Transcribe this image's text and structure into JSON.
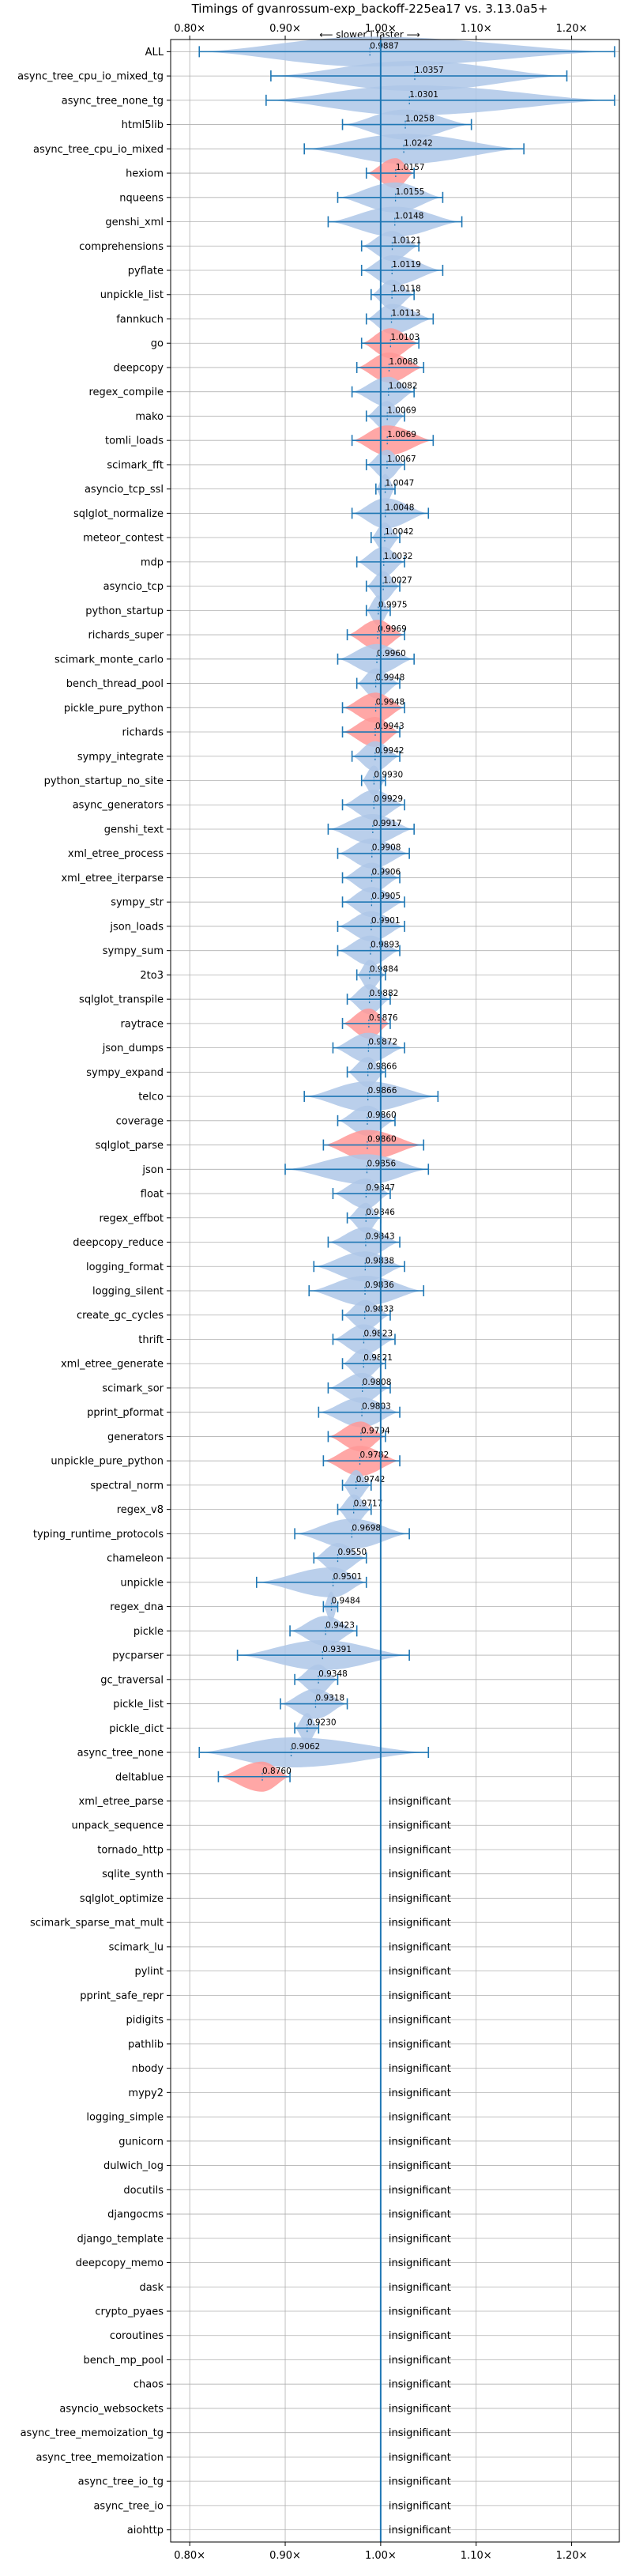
{
  "chart_data": {
    "type": "violin",
    "title": "Timings of gvanrossum-exp_backoff-225ea17 vs. 3.13.0a5+",
    "subtitle": "⟵ slower | faster ⟶",
    "x_ticks": [
      "0.80×",
      "0.90×",
      "1.00×",
      "1.10×",
      "1.20×"
    ],
    "x_tick_values": [
      0.8,
      0.9,
      1.0,
      1.1,
      1.2
    ],
    "xlim": [
      0.78,
      1.25
    ],
    "reference_line": 1.0,
    "grid": true,
    "colors": {
      "faster": "#aec7e8",
      "slower": "#ff9896",
      "line": "#1f77b4"
    },
    "insignificant_label": "insignificant",
    "benchmarks": [
      {
        "name": "ALL",
        "label": "0.9887",
        "value": 0.9887,
        "lo": 0.81,
        "hi": 1.245,
        "color": "faster"
      },
      {
        "name": "async_tree_cpu_io_mixed_tg",
        "label": "1.0357",
        "value": 1.0357,
        "lo": 0.885,
        "hi": 1.195,
        "color": "faster"
      },
      {
        "name": "async_tree_none_tg",
        "label": "1.0301",
        "value": 1.0301,
        "lo": 0.88,
        "hi": 1.245,
        "color": "faster"
      },
      {
        "name": "html5lib",
        "label": "1.0258",
        "value": 1.0258,
        "lo": 0.96,
        "hi": 1.095,
        "color": "faster"
      },
      {
        "name": "async_tree_cpu_io_mixed",
        "label": "1.0242",
        "value": 1.0242,
        "lo": 0.92,
        "hi": 1.15,
        "color": "faster"
      },
      {
        "name": "hexiom",
        "label": "1.0157",
        "value": 1.0157,
        "lo": 0.985,
        "hi": 1.035,
        "color": "slower"
      },
      {
        "name": "nqueens",
        "label": "1.0155",
        "value": 1.0155,
        "lo": 0.955,
        "hi": 1.065,
        "color": "faster"
      },
      {
        "name": "genshi_xml",
        "label": "1.0148",
        "value": 1.0148,
        "lo": 0.945,
        "hi": 1.085,
        "color": "faster"
      },
      {
        "name": "comprehensions",
        "label": "1.0121",
        "value": 1.0121,
        "lo": 0.98,
        "hi": 1.04,
        "color": "faster"
      },
      {
        "name": "pyflate",
        "label": "1.0119",
        "value": 1.0119,
        "lo": 0.98,
        "hi": 1.065,
        "color": "faster"
      },
      {
        "name": "unpickle_list",
        "label": "1.0118",
        "value": 1.0118,
        "lo": 0.99,
        "hi": 1.035,
        "color": "faster"
      },
      {
        "name": "fannkuch",
        "label": "1.0113",
        "value": 1.0113,
        "lo": 0.985,
        "hi": 1.055,
        "color": "faster"
      },
      {
        "name": "go",
        "label": "1.0103",
        "value": 1.0103,
        "lo": 0.98,
        "hi": 1.04,
        "color": "slower"
      },
      {
        "name": "deepcopy",
        "label": "1.0088",
        "value": 1.0088,
        "lo": 0.975,
        "hi": 1.045,
        "color": "slower"
      },
      {
        "name": "regex_compile",
        "label": "1.0082",
        "value": 1.0082,
        "lo": 0.97,
        "hi": 1.035,
        "color": "faster"
      },
      {
        "name": "mako",
        "label": "1.0069",
        "value": 1.0069,
        "lo": 0.985,
        "hi": 1.025,
        "color": "faster"
      },
      {
        "name": "tomli_loads",
        "label": "1.0069",
        "value": 1.0069,
        "lo": 0.97,
        "hi": 1.055,
        "color": "slower"
      },
      {
        "name": "scimark_fft",
        "label": "1.0067",
        "value": 1.0067,
        "lo": 0.985,
        "hi": 1.025,
        "color": "faster"
      },
      {
        "name": "asyncio_tcp_ssl",
        "label": "1.0047",
        "value": 1.0047,
        "lo": 0.995,
        "hi": 1.015,
        "color": "faster"
      },
      {
        "name": "sqlglot_normalize",
        "label": "1.0048",
        "value": 1.0048,
        "lo": 0.97,
        "hi": 1.05,
        "color": "faster"
      },
      {
        "name": "meteor_contest",
        "label": "1.0042",
        "value": 1.0042,
        "lo": 0.99,
        "hi": 1.02,
        "color": "faster"
      },
      {
        "name": "mdp",
        "label": "1.0032",
        "value": 1.0032,
        "lo": 0.975,
        "hi": 1.025,
        "color": "faster"
      },
      {
        "name": "asyncio_tcp",
        "label": "1.0027",
        "value": 1.0027,
        "lo": 0.985,
        "hi": 1.02,
        "color": "faster"
      },
      {
        "name": "python_startup",
        "label": "0.9975",
        "value": 0.9975,
        "lo": 0.985,
        "hi": 1.01,
        "color": "faster"
      },
      {
        "name": "richards_super",
        "label": "0.9969",
        "value": 0.9969,
        "lo": 0.965,
        "hi": 1.025,
        "color": "slower"
      },
      {
        "name": "scimark_monte_carlo",
        "label": "0.9960",
        "value": 0.996,
        "lo": 0.955,
        "hi": 1.035,
        "color": "faster"
      },
      {
        "name": "bench_thread_pool",
        "label": "0.9948",
        "value": 0.9948,
        "lo": 0.975,
        "hi": 1.02,
        "color": "faster"
      },
      {
        "name": "pickle_pure_python",
        "label": "0.9948",
        "value": 0.9948,
        "lo": 0.96,
        "hi": 1.025,
        "color": "slower"
      },
      {
        "name": "richards",
        "label": "0.9943",
        "value": 0.9943,
        "lo": 0.96,
        "hi": 1.02,
        "color": "slower"
      },
      {
        "name": "sympy_integrate",
        "label": "0.9942",
        "value": 0.9942,
        "lo": 0.97,
        "hi": 1.02,
        "color": "faster"
      },
      {
        "name": "python_startup_no_site",
        "label": "0.9930",
        "value": 0.993,
        "lo": 0.98,
        "hi": 1.005,
        "color": "faster"
      },
      {
        "name": "async_generators",
        "label": "0.9929",
        "value": 0.9929,
        "lo": 0.96,
        "hi": 1.025,
        "color": "faster"
      },
      {
        "name": "genshi_text",
        "label": "0.9917",
        "value": 0.9917,
        "lo": 0.945,
        "hi": 1.035,
        "color": "faster"
      },
      {
        "name": "xml_etree_process",
        "label": "0.9908",
        "value": 0.9908,
        "lo": 0.955,
        "hi": 1.03,
        "color": "faster"
      },
      {
        "name": "xml_etree_iterparse",
        "label": "0.9906",
        "value": 0.9906,
        "lo": 0.96,
        "hi": 1.02,
        "color": "faster"
      },
      {
        "name": "sympy_str",
        "label": "0.9905",
        "value": 0.9905,
        "lo": 0.96,
        "hi": 1.025,
        "color": "faster"
      },
      {
        "name": "json_loads",
        "label": "0.9901",
        "value": 0.9901,
        "lo": 0.955,
        "hi": 1.025,
        "color": "faster"
      },
      {
        "name": "sympy_sum",
        "label": "0.9893",
        "value": 0.9893,
        "lo": 0.955,
        "hi": 1.02,
        "color": "faster"
      },
      {
        "name": "2to3",
        "label": "0.9884",
        "value": 0.9884,
        "lo": 0.975,
        "hi": 1.005,
        "color": "faster"
      },
      {
        "name": "sqlglot_transpile",
        "label": "0.9882",
        "value": 0.9882,
        "lo": 0.965,
        "hi": 1.01,
        "color": "faster"
      },
      {
        "name": "raytrace",
        "label": "0.9876",
        "value": 0.9876,
        "lo": 0.96,
        "hi": 1.01,
        "color": "slower"
      },
      {
        "name": "json_dumps",
        "label": "0.9872",
        "value": 0.9872,
        "lo": 0.95,
        "hi": 1.025,
        "color": "faster"
      },
      {
        "name": "sympy_expand",
        "label": "0.9866",
        "value": 0.9866,
        "lo": 0.965,
        "hi": 1.005,
        "color": "faster"
      },
      {
        "name": "telco",
        "label": "0.9866",
        "value": 0.9866,
        "lo": 0.92,
        "hi": 1.06,
        "color": "faster"
      },
      {
        "name": "coverage",
        "label": "0.9860",
        "value": 0.986,
        "lo": 0.955,
        "hi": 1.015,
        "color": "faster"
      },
      {
        "name": "sqlglot_parse",
        "label": "0.9860",
        "value": 0.986,
        "lo": 0.94,
        "hi": 1.045,
        "color": "slower"
      },
      {
        "name": "json",
        "label": "0.9856",
        "value": 0.9856,
        "lo": 0.9,
        "hi": 1.05,
        "color": "faster"
      },
      {
        "name": "float",
        "label": "0.9847",
        "value": 0.9847,
        "lo": 0.95,
        "hi": 1.01,
        "color": "faster"
      },
      {
        "name": "regex_effbot",
        "label": "0.9846",
        "value": 0.9846,
        "lo": 0.965,
        "hi": 1.0,
        "color": "faster"
      },
      {
        "name": "deepcopy_reduce",
        "label": "0.9843",
        "value": 0.9843,
        "lo": 0.945,
        "hi": 1.02,
        "color": "faster"
      },
      {
        "name": "logging_format",
        "label": "0.9838",
        "value": 0.9838,
        "lo": 0.93,
        "hi": 1.025,
        "color": "faster"
      },
      {
        "name": "logging_silent",
        "label": "0.9836",
        "value": 0.9836,
        "lo": 0.925,
        "hi": 1.045,
        "color": "faster"
      },
      {
        "name": "create_gc_cycles",
        "label": "0.9833",
        "value": 0.9833,
        "lo": 0.96,
        "hi": 1.01,
        "color": "faster"
      },
      {
        "name": "thrift",
        "label": "0.9823",
        "value": 0.9823,
        "lo": 0.95,
        "hi": 1.015,
        "color": "faster"
      },
      {
        "name": "xml_etree_generate",
        "label": "0.9821",
        "value": 0.9821,
        "lo": 0.96,
        "hi": 1.005,
        "color": "faster"
      },
      {
        "name": "scimark_sor",
        "label": "0.9808",
        "value": 0.9808,
        "lo": 0.945,
        "hi": 1.01,
        "color": "faster"
      },
      {
        "name": "pprint_pformat",
        "label": "0.9803",
        "value": 0.9803,
        "lo": 0.935,
        "hi": 1.02,
        "color": "faster"
      },
      {
        "name": "generators",
        "label": "0.9794",
        "value": 0.9794,
        "lo": 0.945,
        "hi": 1.005,
        "color": "slower"
      },
      {
        "name": "unpickle_pure_python",
        "label": "0.9782",
        "value": 0.9782,
        "lo": 0.94,
        "hi": 1.02,
        "color": "slower"
      },
      {
        "name": "spectral_norm",
        "label": "0.9742",
        "value": 0.9742,
        "lo": 0.96,
        "hi": 0.99,
        "color": "faster"
      },
      {
        "name": "regex_v8",
        "label": "0.9717",
        "value": 0.9717,
        "lo": 0.955,
        "hi": 0.99,
        "color": "faster"
      },
      {
        "name": "typing_runtime_protocols",
        "label": "0.9698",
        "value": 0.9698,
        "lo": 0.91,
        "hi": 1.03,
        "color": "faster"
      },
      {
        "name": "chameleon",
        "label": "0.9550",
        "value": 0.955,
        "lo": 0.93,
        "hi": 0.985,
        "color": "faster"
      },
      {
        "name": "unpickle",
        "label": "0.9501",
        "value": 0.9501,
        "lo": 0.87,
        "hi": 0.985,
        "color": "faster"
      },
      {
        "name": "regex_dna",
        "label": "0.9484",
        "value": 0.9484,
        "lo": 0.94,
        "hi": 0.955,
        "color": "faster"
      },
      {
        "name": "pickle",
        "label": "0.9423",
        "value": 0.9423,
        "lo": 0.905,
        "hi": 0.975,
        "color": "faster"
      },
      {
        "name": "pycparser",
        "label": "0.9391",
        "value": 0.9391,
        "lo": 0.85,
        "hi": 1.03,
        "color": "faster"
      },
      {
        "name": "gc_traversal",
        "label": "0.9348",
        "value": 0.9348,
        "lo": 0.91,
        "hi": 0.955,
        "color": "faster"
      },
      {
        "name": "pickle_list",
        "label": "0.9318",
        "value": 0.9318,
        "lo": 0.895,
        "hi": 0.965,
        "color": "faster"
      },
      {
        "name": "pickle_dict",
        "label": "0.9230",
        "value": 0.923,
        "lo": 0.91,
        "hi": 0.935,
        "color": "faster"
      },
      {
        "name": "async_tree_none",
        "label": "0.9062",
        "value": 0.9062,
        "lo": 0.81,
        "hi": 1.05,
        "color": "faster"
      },
      {
        "name": "deltablue",
        "label": "0.8760",
        "value": 0.876,
        "lo": 0.83,
        "hi": 0.905,
        "color": "slower"
      },
      {
        "name": "xml_etree_parse",
        "insignificant": true
      },
      {
        "name": "unpack_sequence",
        "insignificant": true
      },
      {
        "name": "tornado_http",
        "insignificant": true
      },
      {
        "name": "sqlite_synth",
        "insignificant": true
      },
      {
        "name": "sqlglot_optimize",
        "insignificant": true
      },
      {
        "name": "scimark_sparse_mat_mult",
        "insignificant": true
      },
      {
        "name": "scimark_lu",
        "insignificant": true
      },
      {
        "name": "pylint",
        "insignificant": true
      },
      {
        "name": "pprint_safe_repr",
        "insignificant": true
      },
      {
        "name": "pidigits",
        "insignificant": true
      },
      {
        "name": "pathlib",
        "insignificant": true
      },
      {
        "name": "nbody",
        "insignificant": true
      },
      {
        "name": "mypy2",
        "insignificant": true
      },
      {
        "name": "logging_simple",
        "insignificant": true
      },
      {
        "name": "gunicorn",
        "insignificant": true
      },
      {
        "name": "dulwich_log",
        "insignificant": true
      },
      {
        "name": "docutils",
        "insignificant": true
      },
      {
        "name": "djangocms",
        "insignificant": true
      },
      {
        "name": "django_template",
        "insignificant": true
      },
      {
        "name": "deepcopy_memo",
        "insignificant": true
      },
      {
        "name": "dask",
        "insignificant": true
      },
      {
        "name": "crypto_pyaes",
        "insignificant": true
      },
      {
        "name": "coroutines",
        "insignificant": true
      },
      {
        "name": "bench_mp_pool",
        "insignificant": true
      },
      {
        "name": "chaos",
        "insignificant": true
      },
      {
        "name": "asyncio_websockets",
        "insignificant": true
      },
      {
        "name": "async_tree_memoization_tg",
        "insignificant": true
      },
      {
        "name": "async_tree_memoization",
        "insignificant": true
      },
      {
        "name": "async_tree_io_tg",
        "insignificant": true
      },
      {
        "name": "async_tree_io",
        "insignificant": true
      },
      {
        "name": "aiohttp",
        "insignificant": true
      }
    ]
  }
}
